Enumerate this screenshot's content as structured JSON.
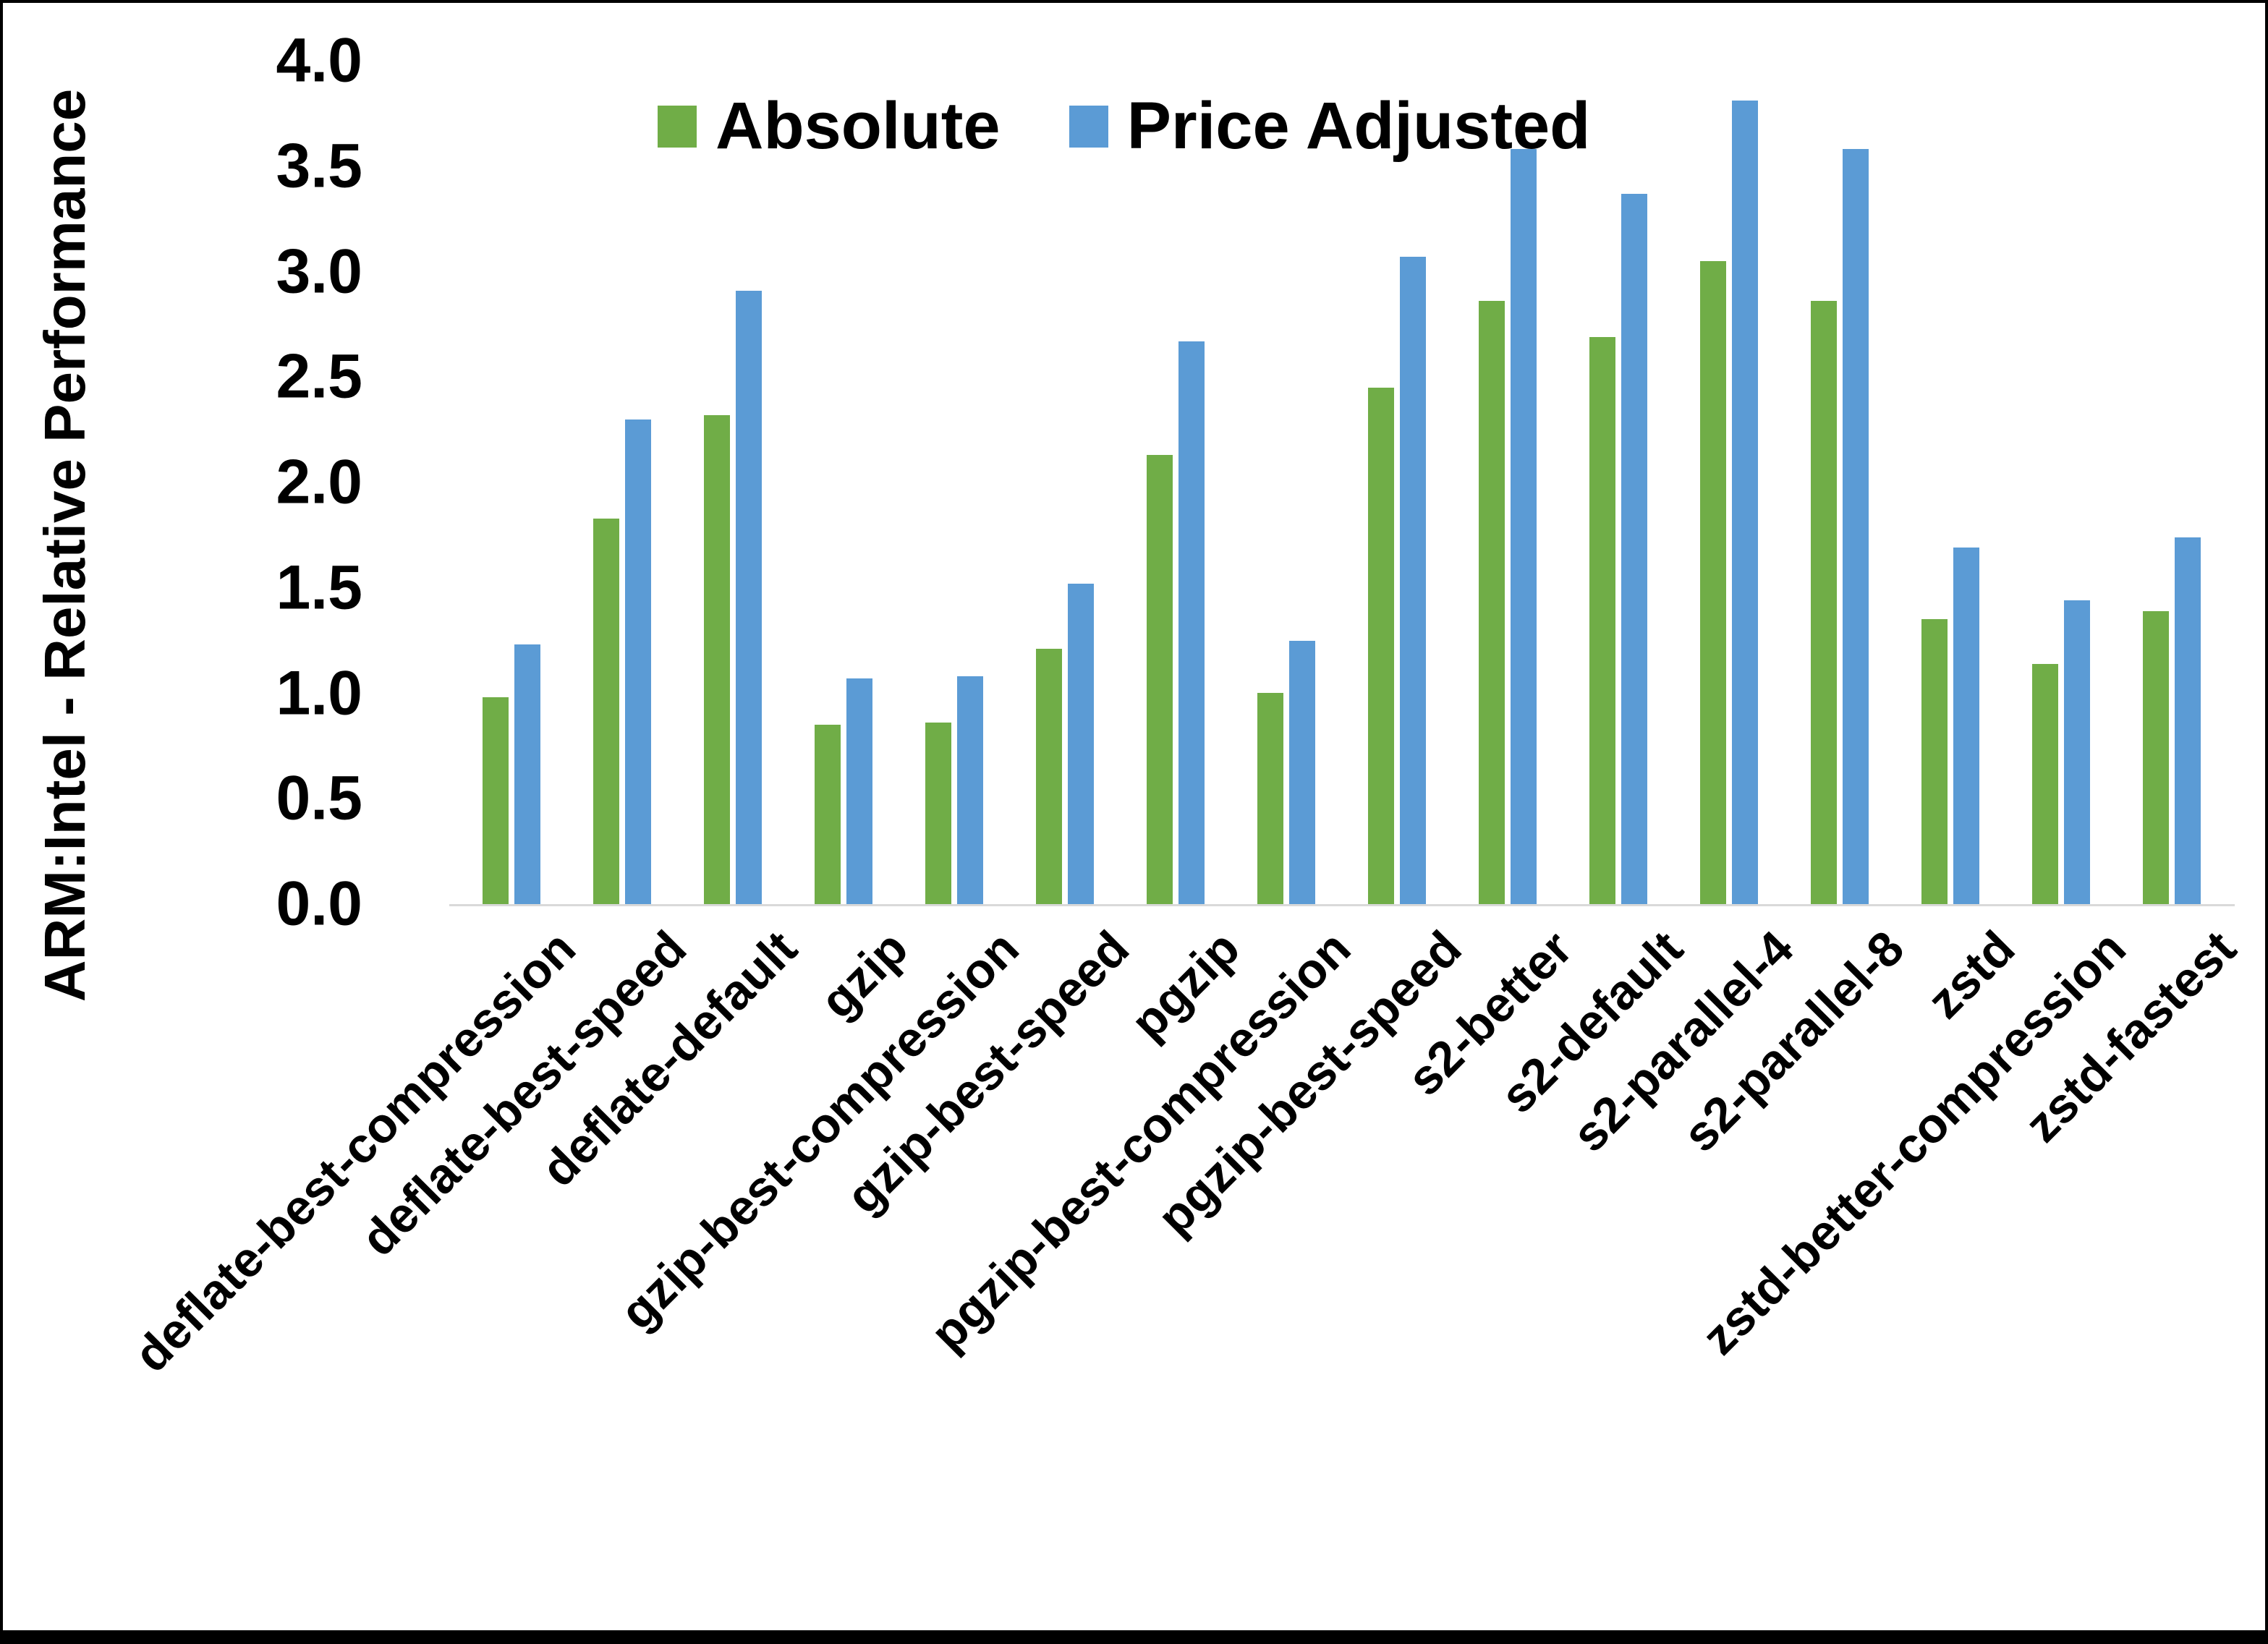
{
  "figure": {
    "background": "#FFFFFF",
    "border_color": "#000000"
  },
  "chart_data": {
    "type": "bar",
    "title": "",
    "ylabel": "ARM:Intel - Relative Performance",
    "xlabel": "",
    "ylim": [
      0.0,
      4.0
    ],
    "ytick_step": 0.5,
    "yticks": [
      "4.0",
      "3.5",
      "3.0",
      "2.5",
      "2.0",
      "1.5",
      "1.0",
      "0.5",
      "0.0"
    ],
    "grid": false,
    "legend_position": "top-center",
    "axis_line_color": "#D9D9D9",
    "text_color": "#000000",
    "categories": [
      "deflate-best-compression",
      "deflate-best-speed",
      "deflate-default",
      "gzip",
      "gzip-best-compression",
      "gzip-best-speed",
      "pgzip",
      "pgzip-best-compression",
      "pgzip-best-speed",
      "s2-better",
      "s2-default",
      "s2-parallel-4",
      "s2-parallel-8",
      "zstd",
      "zstd-better-compression",
      "zstd-fastest"
    ],
    "series": [
      {
        "name": "Absolute",
        "color": "#70AD47",
        "values": [
          0.98,
          1.83,
          2.32,
          0.85,
          0.86,
          1.21,
          2.13,
          1.0,
          2.45,
          2.86,
          2.69,
          3.05,
          2.86,
          1.35,
          1.14,
          1.39
        ]
      },
      {
        "name": "Price Adjusted",
        "color": "#5B9BD5",
        "values": [
          1.23,
          2.3,
          2.91,
          1.07,
          1.08,
          1.52,
          2.67,
          1.25,
          3.07,
          3.58,
          3.37,
          3.81,
          3.58,
          1.69,
          1.44,
          1.74
        ]
      }
    ]
  }
}
